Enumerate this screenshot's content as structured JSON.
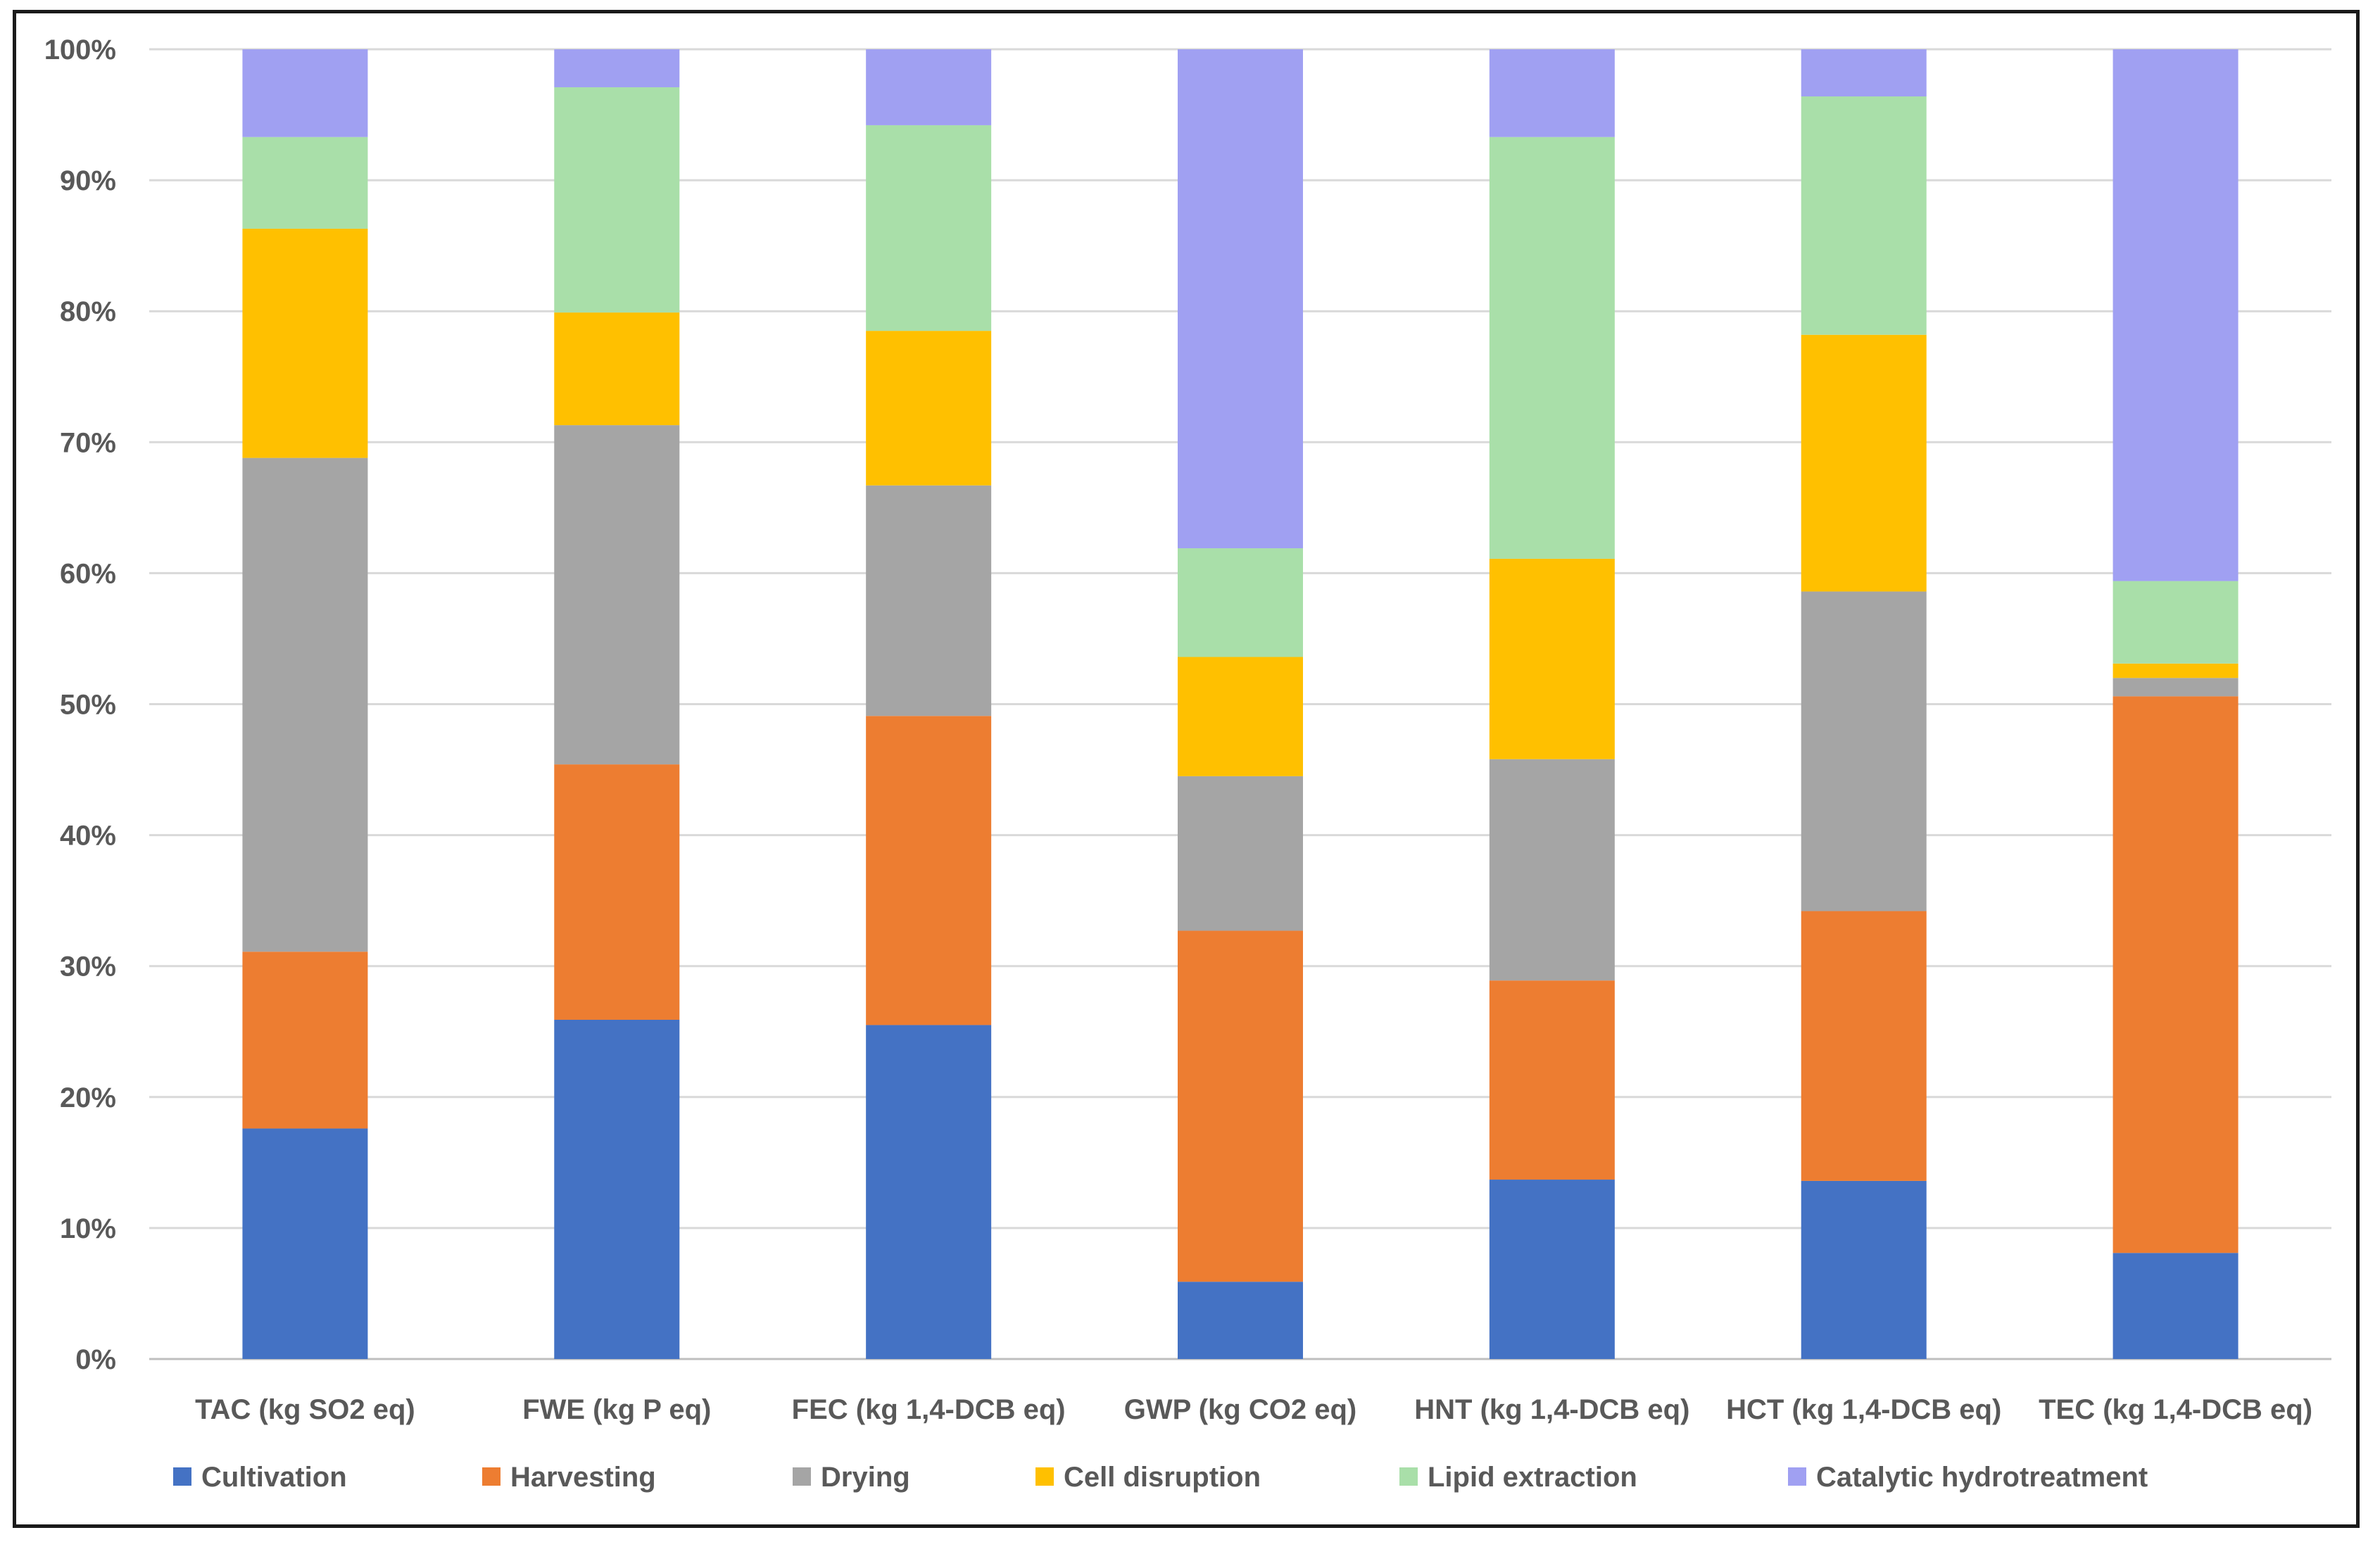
{
  "chart_data": {
    "type": "bar",
    "stacked": true,
    "percent": true,
    "title": "",
    "xlabel": "",
    "ylabel": "",
    "ylim": [
      0,
      100
    ],
    "y_ticks": [
      "0%",
      "10%",
      "20%",
      "30%",
      "40%",
      "50%",
      "60%",
      "70%",
      "80%",
      "90%",
      "100%"
    ],
    "grid": true,
    "legend_position": "bottom",
    "categories": [
      "TAC (kg SO2 eq)",
      "FWE (kg P eq)",
      "FEC (kg 1,4-DCB eq)",
      "GWP (kg CO2 eq)",
      "HNT (kg 1,4-DCB eq)",
      "HCT (kg 1,4-DCB eq)",
      "TEC (kg 1,4-DCB eq)"
    ],
    "series": [
      {
        "name": "Cultivation",
        "color": "#4472C4",
        "values": [
          17.6,
          25.9,
          25.5,
          5.9,
          13.7,
          13.6,
          8.1
        ]
      },
      {
        "name": "Harvesting",
        "color": "#ED7D31",
        "values": [
          13.5,
          19.5,
          23.6,
          26.8,
          15.2,
          20.6,
          42.5
        ]
      },
      {
        "name": "Drying",
        "color": "#A5A5A5",
        "values": [
          37.7,
          25.9,
          17.6,
          11.8,
          16.9,
          24.4,
          1.4
        ]
      },
      {
        "name": "Cell disruption",
        "color": "#FFC000",
        "values": [
          17.5,
          8.6,
          11.8,
          9.1,
          15.3,
          19.6,
          1.1
        ]
      },
      {
        "name": "Lipid extraction",
        "color": "#A9DFA9",
        "values": [
          7.0,
          17.2,
          15.7,
          8.3,
          32.2,
          18.2,
          6.3
        ]
      },
      {
        "name": "Catalytic hydrotreatment",
        "color": "#A0A0F2",
        "values": [
          6.7,
          2.9,
          5.8,
          38.1,
          6.7,
          3.6,
          40.6
        ]
      }
    ]
  }
}
